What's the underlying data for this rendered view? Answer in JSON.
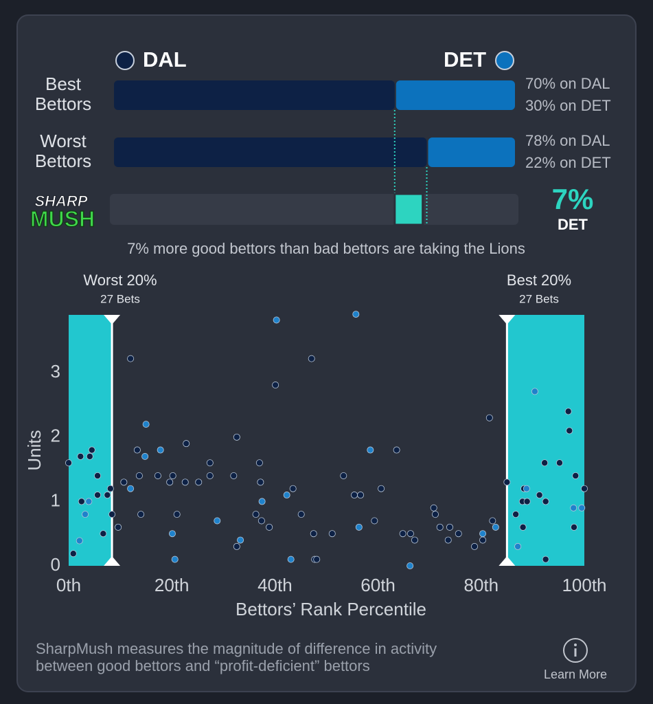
{
  "chart_data": [
    {
      "type": "stacked_hbar",
      "categories": [
        "Best Bettors",
        "Worst Bettors"
      ],
      "series": [
        {
          "name": "DAL",
          "color": "#0d2145",
          "values": [
            70,
            78
          ],
          "value_labels": [
            "70% on DAL",
            "78% on DAL"
          ]
        },
        {
          "name": "DET",
          "color": "#0c72bd",
          "values": [
            30,
            22
          ],
          "value_labels": [
            "30% on DET",
            "22% on DET"
          ]
        }
      ],
      "xlim": [
        0,
        100
      ],
      "logo": [
        "SHARP",
        "MUSH"
      ],
      "sharp_mush": {
        "value": 7,
        "value_label": "7%",
        "team": "DET",
        "color": "#2dd4c0"
      },
      "note": "7% more good bettors than bad bettors are taking the Lions"
    },
    {
      "type": "scatter",
      "xlabel": "Bettors’ Rank Percentile",
      "ylabel": "Units",
      "xlim": [
        0,
        100
      ],
      "ylim": [
        0,
        3.9
      ],
      "xticks": [
        {
          "value": 0,
          "label": "0th"
        },
        {
          "value": 20,
          "label": "20th"
        },
        {
          "value": 40,
          "label": "40th"
        },
        {
          "value": 60,
          "label": "60th"
        },
        {
          "value": 80,
          "label": "80th"
        },
        {
          "value": 100,
          "label": "100th"
        }
      ],
      "yticks": [
        0,
        1,
        2,
        3
      ],
      "regions": [
        {
          "label": "Worst 20%",
          "count_label": "27 Bets",
          "x": [
            0,
            8.4
          ],
          "color": "#22c7cf"
        },
        {
          "label": "Best 20%",
          "count_label": "27 Bets",
          "x": [
            85,
            100
          ],
          "color": "#22c7cf"
        }
      ],
      "series": [
        {
          "color": "#0d2145",
          "x": [
            0,
            0.9,
            2.3,
            2.5,
            4.1,
            4.5,
            5.6,
            5.6,
            6.7,
            7.5,
            8.1,
            8.4,
            9.6,
            10.7,
            12.0,
            13.3,
            13.7,
            14.0,
            17.3,
            19.6,
            20.2,
            21.0,
            22.6,
            22.8,
            25.2,
            27.4,
            27.4,
            32.0,
            32.6,
            32.6,
            36.3,
            37.0,
            37.2,
            37.4,
            38.9,
            40.1,
            43.5,
            45.1,
            47.1,
            47.5,
            47.7,
            48.1,
            51.1,
            53.3,
            55.4,
            56.6,
            59.3,
            60.6,
            63.6,
            64.8,
            66.3,
            67.1,
            70.8,
            71.1,
            72.0,
            73.6,
            73.9,
            75.6,
            78.7,
            80.3,
            81.6,
            82.2,
            85.0,
            86.7,
            88.0,
            88.3,
            88.1,
            88.9,
            91.3,
            92.3,
            92.5,
            92.5,
            95.2,
            96.9,
            97.1,
            98.0,
            98.3,
            100
          ],
          "values": [
            1.6,
            0.19,
            1.7,
            1.0,
            1.7,
            1.8,
            1.4,
            1.1,
            0.5,
            1.1,
            1.2,
            0.8,
            0.6,
            1.3,
            3.22,
            1.8,
            1.4,
            0.8,
            1.4,
            1.3,
            1.4,
            0.8,
            1.3,
            1.9,
            1.3,
            1.4,
            1.6,
            1.4,
            2.0,
            0.3,
            0.8,
            1.6,
            1.3,
            0.7,
            0.6,
            2.81,
            1.2,
            0.8,
            3.22,
            0.5,
            0.1,
            0.1,
            0.5,
            1.4,
            1.1,
            1.1,
            0.7,
            1.2,
            1.8,
            0.5,
            0.5,
            0.4,
            0.9,
            0.8,
            0.6,
            0.4,
            0.6,
            0.5,
            0.3,
            0.4,
            2.3,
            0.7,
            1.3,
            0.8,
            1.0,
            1.2,
            0.6,
            1.0,
            1.1,
            1.6,
            1.0,
            0.1,
            1.6,
            2.4,
            2.1,
            0.6,
            1.4,
            1.2
          ]
        },
        {
          "color": "#1f82cb",
          "x": [
            2.1,
            3.2,
            3.9,
            12.0,
            14.8,
            15.0,
            17.8,
            20.1,
            20.6,
            28.8,
            33.3,
            37.5,
            40.3,
            42.3,
            43.1,
            55.7,
            56.3,
            58.5,
            66.2,
            80.3,
            82.8,
            87.1,
            88.8,
            90.4,
            97.9,
            99.5
          ],
          "values": [
            0.39,
            0.8,
            1.0,
            1.2,
            1.7,
            2.2,
            1.8,
            0.5,
            0.1,
            0.7,
            0.4,
            1.0,
            3.82,
            1.1,
            0.1,
            3.91,
            0.6,
            1.8,
            0,
            0.5,
            0.6,
            0.3,
            1.2,
            2.71,
            0.9,
            0.9
          ]
        }
      ]
    }
  ],
  "footer": {
    "lines": [
      "SharpMush measures the magnitude of difference in activity",
      "between good bettors and “profit-deficient” bettors"
    ],
    "link": "Learn More"
  }
}
